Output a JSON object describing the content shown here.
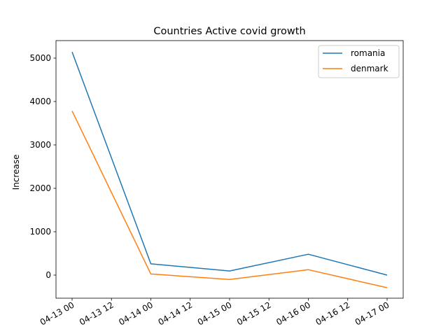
{
  "chart_data": {
    "type": "line",
    "title": "Countries Active covid growth",
    "xlabel": "",
    "ylabel": "Increase",
    "x": [
      "04-13 00",
      "04-14 00",
      "04-15 00",
      "04-16 00",
      "04-17 00"
    ],
    "x_ticks": [
      "04-13 00",
      "04-13 12",
      "04-14 00",
      "04-14 12",
      "04-15 00",
      "04-15 12",
      "04-16 00",
      "04-16 12",
      "04-17 00"
    ],
    "y_ticks": [
      0,
      1000,
      2000,
      3000,
      4000,
      5000
    ],
    "ylim": [
      -550,
      5400
    ],
    "series": [
      {
        "name": "romania",
        "color": "#1f77b4",
        "values": [
          5140,
          260,
          95,
          480,
          0
        ]
      },
      {
        "name": "denmark",
        "color": "#ff7f0e",
        "values": [
          3780,
          25,
          -100,
          125,
          -290
        ]
      }
    ],
    "legend": "top-right",
    "grid": false
  }
}
